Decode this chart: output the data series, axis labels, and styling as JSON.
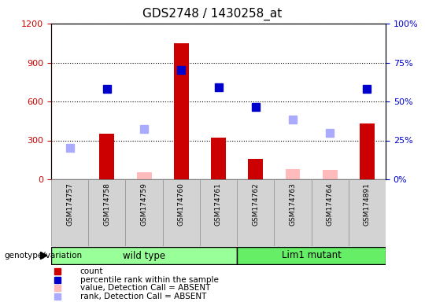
{
  "title": "GDS2748 / 1430258_at",
  "samples": [
    "GSM174757",
    "GSM174758",
    "GSM174759",
    "GSM174760",
    "GSM174761",
    "GSM174762",
    "GSM174763",
    "GSM174764",
    "GSM174891"
  ],
  "groups": {
    "wild type": [
      0,
      1,
      2,
      3,
      4
    ],
    "Lim1 mutant": [
      5,
      6,
      7,
      8
    ]
  },
  "count_values": [
    0,
    350,
    0,
    1050,
    320,
    160,
    0,
    0,
    430
  ],
  "absent_value_values": [
    0,
    0,
    55,
    0,
    0,
    0,
    80,
    70,
    0
  ],
  "percentile_rank_values": [
    null,
    700,
    null,
    840,
    710,
    560,
    null,
    null,
    700
  ],
  "absent_rank_values": [
    240,
    null,
    390,
    null,
    null,
    null,
    460,
    360,
    null
  ],
  "left_ylim": [
    0,
    1200
  ],
  "right_ylim": [
    0,
    100
  ],
  "left_yticks": [
    0,
    300,
    600,
    900,
    1200
  ],
  "right_yticks": [
    0,
    25,
    50,
    75,
    100
  ],
  "left_yticklabels": [
    "0",
    "300",
    "600",
    "900",
    "1200"
  ],
  "right_yticklabels": [
    "0%",
    "25%",
    "50%",
    "75%",
    "100%"
  ],
  "bar_color": "#cc0000",
  "absent_value_color": "#ffbbbb",
  "rank_color": "#0000cc",
  "absent_rank_color": "#aaaaff",
  "wt_color": "#99ff99",
  "lm_color": "#66ee66",
  "left_axis_color": "#cc0000",
  "right_axis_color": "#0000cc",
  "grid_color": "#000000",
  "sample_bg_color": "#d3d3d3",
  "legend_items": [
    {
      "label": "count",
      "color": "#cc0000"
    },
    {
      "label": "percentile rank within the sample",
      "color": "#0000cc"
    },
    {
      "label": "value, Detection Call = ABSENT",
      "color": "#ffbbbb"
    },
    {
      "label": "rank, Detection Call = ABSENT",
      "color": "#aaaaff"
    }
  ]
}
